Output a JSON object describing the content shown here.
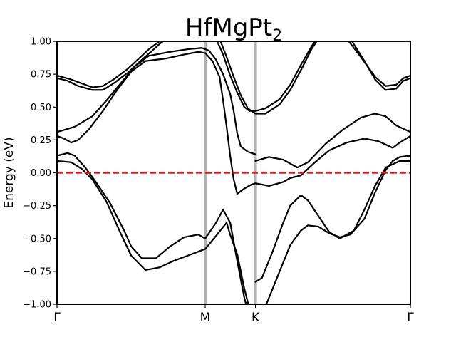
{
  "chart_data": {
    "type": "line",
    "title_main": "HfMgPt",
    "title_sub": "2",
    "xlabel": "",
    "ylabel": "Energy (eV)",
    "ylim": [
      -1.0,
      1.0
    ],
    "xlim": [
      0,
      1
    ],
    "yticks": [
      "1.00",
      "0.75",
      "0.50",
      "0.25",
      "0.00",
      "−0.25",
      "−0.50",
      "−0.75",
      "−1.00"
    ],
    "ytick_values": [
      1.0,
      0.75,
      0.5,
      0.25,
      0.0,
      -0.25,
      -0.5,
      -0.75,
      -1.0
    ],
    "kpoints": [
      {
        "label": "Γ",
        "x": 0.0
      },
      {
        "label": "M",
        "x": 0.4194
      },
      {
        "label": "K",
        "x": 0.5617
      },
      {
        "label": "Γ",
        "x": 1.0
      }
    ],
    "fermi_level": 0.0,
    "fermi_color": "#e6191c",
    "kpath_line_color": "#b2b2b2",
    "band_color": "#000000",
    "grid": false,
    "legend": "none",
    "series": [
      {
        "points": [
          [
            0.0,
            0.74
          ],
          [
            0.04,
            0.71
          ],
          [
            0.07,
            0.68
          ],
          [
            0.1,
            0.65
          ],
          [
            0.13,
            0.66
          ],
          [
            0.16,
            0.71
          ],
          [
            0.2,
            0.79
          ],
          [
            0.24,
            0.89
          ],
          [
            0.26,
            0.94
          ],
          [
            0.28,
            0.98
          ],
          [
            0.3,
            1.02
          ]
        ]
      },
      {
        "points": [
          [
            0.0,
            0.72
          ],
          [
            0.03,
            0.7
          ],
          [
            0.06,
            0.66
          ],
          [
            0.1,
            0.63
          ],
          [
            0.13,
            0.63
          ],
          [
            0.16,
            0.68
          ],
          [
            0.2,
            0.76
          ],
          [
            0.24,
            0.86
          ],
          [
            0.27,
            0.93
          ],
          [
            0.29,
            0.98
          ],
          [
            0.31,
            1.02
          ]
        ]
      },
      {
        "points": [
          [
            0.0,
            0.31
          ],
          [
            0.05,
            0.35
          ],
          [
            0.1,
            0.43
          ],
          [
            0.14,
            0.55
          ],
          [
            0.18,
            0.68
          ],
          [
            0.22,
            0.81
          ],
          [
            0.26,
            0.89
          ],
          [
            0.32,
            0.92
          ],
          [
            0.37,
            0.94
          ],
          [
            0.41,
            0.95
          ],
          [
            0.43,
            0.93
          ],
          [
            0.45,
            0.86
          ],
          [
            0.47,
            0.75
          ],
          [
            0.49,
            0.6
          ],
          [
            0.5,
            0.47
          ],
          [
            0.51,
            0.3
          ],
          [
            0.52,
            0.2
          ],
          [
            0.54,
            0.16
          ],
          [
            0.5617,
            0.14
          ]
        ]
      },
      {
        "points": [
          [
            0.0,
            0.28
          ],
          [
            0.02,
            0.26
          ],
          [
            0.04,
            0.23
          ],
          [
            0.06,
            0.25
          ],
          [
            0.09,
            0.33
          ],
          [
            0.13,
            0.47
          ],
          [
            0.17,
            0.63
          ],
          [
            0.21,
            0.77
          ],
          [
            0.25,
            0.85
          ],
          [
            0.31,
            0.87
          ],
          [
            0.36,
            0.9
          ],
          [
            0.4,
            0.92
          ],
          [
            0.42,
            0.91
          ],
          [
            0.44,
            0.85
          ],
          [
            0.46,
            0.73
          ],
          [
            0.47,
            0.55
          ],
          [
            0.48,
            0.35
          ],
          [
            0.49,
            0.13
          ],
          [
            0.5,
            -0.05
          ],
          [
            0.51,
            -0.16
          ],
          [
            0.53,
            -0.12
          ],
          [
            0.55,
            -0.09
          ],
          [
            0.5617,
            -0.08
          ]
        ]
      },
      {
        "points": [
          [
            0.0,
            0.13
          ],
          [
            0.03,
            0.15
          ],
          [
            0.05,
            0.13
          ],
          [
            0.08,
            0.04
          ],
          [
            0.11,
            -0.07
          ],
          [
            0.15,
            -0.23
          ],
          [
            0.19,
            -0.44
          ],
          [
            0.21,
            -0.56
          ],
          [
            0.24,
            -0.65
          ],
          [
            0.28,
            -0.65
          ],
          [
            0.32,
            -0.56
          ],
          [
            0.36,
            -0.49
          ],
          [
            0.4,
            -0.47
          ],
          [
            0.4194,
            -0.5
          ],
          [
            0.45,
            -0.38
          ],
          [
            0.47,
            -0.28
          ],
          [
            0.49,
            -0.38
          ],
          [
            0.51,
            -0.67
          ],
          [
            0.53,
            -0.95
          ],
          [
            0.54,
            -1.05
          ]
        ]
      },
      {
        "points": [
          [
            0.0,
            0.09
          ],
          [
            0.04,
            0.08
          ],
          [
            0.07,
            0.03
          ],
          [
            0.1,
            -0.05
          ],
          [
            0.14,
            -0.22
          ],
          [
            0.18,
            -0.46
          ],
          [
            0.21,
            -0.63
          ],
          [
            0.25,
            -0.74
          ],
          [
            0.29,
            -0.72
          ],
          [
            0.33,
            -0.67
          ],
          [
            0.37,
            -0.63
          ],
          [
            0.4194,
            -0.58
          ],
          [
            0.45,
            -0.48
          ],
          [
            0.48,
            -0.38
          ],
          [
            0.49,
            -0.47
          ],
          [
            0.51,
            -0.62
          ],
          [
            0.53,
            -0.88
          ],
          [
            0.546,
            -1.05
          ]
        ]
      },
      {
        "points": [
          [
            0.45,
            1.02
          ],
          [
            0.47,
            0.9
          ],
          [
            0.49,
            0.74
          ],
          [
            0.51,
            0.61
          ],
          [
            0.53,
            0.5
          ],
          [
            0.545,
            0.47
          ],
          [
            0.5617,
            0.47
          ],
          [
            0.59,
            0.49
          ],
          [
            0.63,
            0.56
          ],
          [
            0.66,
            0.67
          ],
          [
            0.69,
            0.82
          ],
          [
            0.72,
            0.96
          ],
          [
            0.735,
            1.02
          ]
        ]
      },
      {
        "points": [
          [
            0.46,
            1.02
          ],
          [
            0.48,
            0.88
          ],
          [
            0.5,
            0.73
          ],
          [
            0.52,
            0.59
          ],
          [
            0.54,
            0.49
          ],
          [
            0.5617,
            0.45
          ],
          [
            0.59,
            0.45
          ],
          [
            0.63,
            0.52
          ],
          [
            0.66,
            0.63
          ],
          [
            0.69,
            0.78
          ],
          [
            0.72,
            0.94
          ],
          [
            0.74,
            1.02
          ]
        ]
      },
      {
        "points": [
          [
            0.5617,
            0.09
          ],
          [
            0.6,
            0.12
          ],
          [
            0.64,
            0.1
          ],
          [
            0.68,
            0.04
          ],
          [
            0.71,
            0.08
          ],
          [
            0.76,
            0.22
          ],
          [
            0.81,
            0.33
          ],
          [
            0.86,
            0.42
          ],
          [
            0.9,
            0.45
          ],
          [
            0.93,
            0.43
          ],
          [
            0.96,
            0.36
          ],
          [
            1.0,
            0.31
          ]
        ]
      },
      {
        "points": [
          [
            0.5617,
            -0.08
          ],
          [
            0.6,
            -0.1
          ],
          [
            0.64,
            -0.07
          ],
          [
            0.66,
            -0.04
          ],
          [
            0.69,
            -0.02
          ],
          [
            0.73,
            0.08
          ],
          [
            0.77,
            0.17
          ],
          [
            0.82,
            0.23
          ],
          [
            0.87,
            0.26
          ],
          [
            0.91,
            0.24
          ],
          [
            0.95,
            0.19
          ],
          [
            0.97,
            0.23
          ],
          [
            1.0,
            0.28
          ]
        ]
      },
      {
        "points": [
          [
            0.5617,
            -0.83
          ],
          [
            0.58,
            -0.8
          ],
          [
            0.61,
            -0.6
          ],
          [
            0.64,
            -0.38
          ],
          [
            0.66,
            -0.25
          ],
          [
            0.69,
            -0.17
          ],
          [
            0.71,
            -0.21
          ],
          [
            0.74,
            -0.33
          ],
          [
            0.77,
            -0.45
          ],
          [
            0.8,
            -0.5
          ],
          [
            0.84,
            -0.44
          ],
          [
            0.87,
            -0.28
          ],
          [
            0.9,
            -0.1
          ],
          [
            0.93,
            0.04
          ],
          [
            0.97,
            0.09
          ],
          [
            1.0,
            0.09
          ]
        ]
      },
      {
        "points": [
          [
            0.585,
            -1.05
          ],
          [
            0.6,
            -0.95
          ],
          [
            0.63,
            -0.75
          ],
          [
            0.66,
            -0.55
          ],
          [
            0.69,
            -0.44
          ],
          [
            0.71,
            -0.4
          ],
          [
            0.74,
            -0.41
          ],
          [
            0.77,
            -0.46
          ],
          [
            0.8,
            -0.49
          ],
          [
            0.83,
            -0.47
          ],
          [
            0.87,
            -0.35
          ],
          [
            0.9,
            -0.15
          ],
          [
            0.93,
            0.02
          ],
          [
            0.95,
            0.09
          ],
          [
            0.97,
            0.12
          ],
          [
            1.0,
            0.13
          ]
        ]
      },
      {
        "points": [
          [
            0.82,
            1.02
          ],
          [
            0.86,
            0.88
          ],
          [
            0.9,
            0.73
          ],
          [
            0.93,
            0.66
          ],
          [
            0.96,
            0.67
          ],
          [
            0.98,
            0.72
          ],
          [
            1.0,
            0.74
          ]
        ]
      },
      {
        "points": [
          [
            0.83,
            1.02
          ],
          [
            0.87,
            0.85
          ],
          [
            0.9,
            0.71
          ],
          [
            0.93,
            0.63
          ],
          [
            0.96,
            0.64
          ],
          [
            0.98,
            0.7
          ],
          [
            1.0,
            0.72
          ]
        ]
      }
    ]
  }
}
